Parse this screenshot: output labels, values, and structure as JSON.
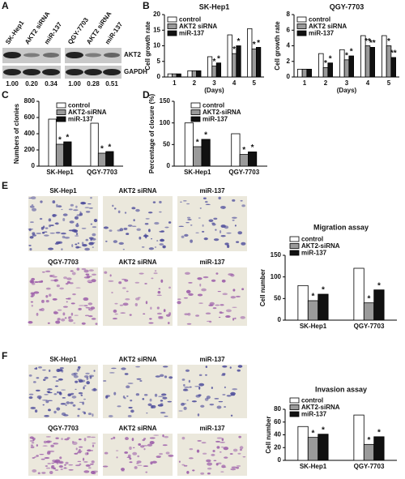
{
  "panel_labels": [
    "A",
    "B",
    "C",
    "D",
    "E",
    "F"
  ],
  "blot": {
    "lanes": [
      "SK-Hep1",
      "AKT2 siRNA",
      "miR-137",
      "QGY-7703",
      "AKT2 siRNA",
      "miR-137"
    ],
    "rows": [
      "AKT2",
      "GAPDH"
    ],
    "ratios": [
      "1.00",
      "0.20",
      "0.34",
      "1.00",
      "0.28",
      "0.51"
    ]
  },
  "micrographs": {
    "migration": [
      "SK-Hep1",
      "AKT2 siRNA",
      "miR-137",
      "QGY-7703",
      "AKT2 siRNA",
      "miR-137"
    ],
    "invasion": [
      "SK-Hep1",
      "AKT2 siRNA",
      "miR-137",
      "QGY-7703",
      "AKT2 siRNA",
      "miR-137"
    ]
  },
  "chart_data": [
    {
      "type": "bar",
      "title": "SK-Hep1",
      "y_label": "Cell growth rate",
      "x_label": "(Days)",
      "categories": [
        "1",
        "2",
        "3",
        "4",
        "5"
      ],
      "series": [
        {
          "name": "control",
          "color": "#ffffff",
          "values": [
            1,
            2,
            6.5,
            13.5,
            15.5
          ],
          "significance": [
            null,
            null,
            null,
            null,
            null
          ]
        },
        {
          "name": "AKT2 siRNA",
          "color": "#9a9a9a",
          "values": [
            1,
            2,
            3.5,
            7.5,
            9
          ],
          "significance": [
            null,
            null,
            "*",
            "*",
            "*"
          ]
        },
        {
          "name": "miR-137",
          "color": "#111111",
          "values": [
            1,
            2,
            4.5,
            10,
            9.5
          ],
          "significance": [
            null,
            null,
            "*",
            "*",
            "*"
          ]
        }
      ],
      "ylim": [
        0,
        20
      ],
      "yticks": [
        0,
        5,
        10,
        15,
        20
      ],
      "legend": "upper left"
    },
    {
      "type": "bar",
      "title": "QGY-7703",
      "y_label": "Cell growth rate",
      "x_label": "(Days)",
      "categories": [
        "1",
        "2",
        "3",
        "4",
        "5"
      ],
      "series": [
        {
          "name": "control",
          "color": "#ffffff",
          "values": [
            1,
            3,
            3.5,
            5.3,
            5.3
          ],
          "significance": [
            null,
            null,
            null,
            null,
            null
          ]
        },
        {
          "name": "AKT2 siRNA",
          "color": "#9a9a9a",
          "values": [
            1,
            1.2,
            2.2,
            4,
            4
          ],
          "significance": [
            null,
            "*",
            "*",
            "**",
            "*"
          ]
        },
        {
          "name": "miR-137",
          "color": "#111111",
          "values": [
            1,
            1.8,
            2.7,
            3.8,
            2.5
          ],
          "significance": [
            null,
            "*",
            "*",
            "**",
            "**"
          ]
        }
      ],
      "ylim": [
        0,
        8
      ],
      "yticks": [
        0,
        2,
        4,
        6,
        8
      ],
      "legend": "upper left"
    },
    {
      "type": "bar",
      "y_label": "Numbers of clonies",
      "categories": [
        "SK-Hep1",
        "QGY-7703"
      ],
      "series": [
        {
          "name": "control",
          "color": "#ffffff",
          "values": [
            580,
            530
          ],
          "significance": [
            null,
            null
          ]
        },
        {
          "name": "AKT2-siRNA",
          "color": "#9a9a9a",
          "values": [
            270,
            160
          ],
          "significance": [
            "*",
            "*"
          ]
        },
        {
          "name": "miR-137",
          "color": "#111111",
          "values": [
            300,
            180
          ],
          "significance": [
            "*",
            "*"
          ]
        }
      ],
      "ylim": [
        0,
        800
      ],
      "yticks": [
        0,
        200,
        400,
        600,
        800
      ],
      "legend": "upper right"
    },
    {
      "type": "bar",
      "y_label": "Percentage of closure (%)",
      "categories": [
        "SK-Hep1",
        "QGY-7703"
      ],
      "series": [
        {
          "name": "control",
          "color": "#ffffff",
          "values": [
            100,
            75
          ],
          "significance": [
            null,
            null
          ]
        },
        {
          "name": "AKT2-siRNA",
          "color": "#9a9a9a",
          "values": [
            45,
            27
          ],
          "significance": [
            "*",
            "*"
          ]
        },
        {
          "name": "miR-137",
          "color": "#111111",
          "values": [
            62,
            33
          ],
          "significance": [
            "*",
            "*"
          ]
        }
      ],
      "ylim": [
        0,
        150
      ],
      "yticks": [
        0,
        50,
        100,
        150
      ],
      "legend": "upper right"
    },
    {
      "type": "bar",
      "title": "Migration assay",
      "y_label": "Cell number",
      "categories": [
        "SK-Hep1",
        "QGY-7703"
      ],
      "series": [
        {
          "name": "control",
          "color": "#ffffff",
          "values": [
            80,
            120
          ],
          "significance": [
            null,
            null
          ]
        },
        {
          "name": "AKT2-siRNA",
          "color": "#9a9a9a",
          "values": [
            45,
            40
          ],
          "significance": [
            "*",
            "*"
          ]
        },
        {
          "name": "miR-137",
          "color": "#111111",
          "values": [
            60,
            70
          ],
          "significance": [
            "*",
            "*"
          ]
        }
      ],
      "ylim": [
        0,
        150
      ],
      "yticks": [
        0,
        50,
        100,
        150
      ],
      "legend": "upper left"
    },
    {
      "type": "bar",
      "title": "Invasion assay",
      "y_label": "Cell number",
      "categories": [
        "SK-Hep1",
        "QGY-7703"
      ],
      "series": [
        {
          "name": "control",
          "color": "#ffffff",
          "values": [
            53,
            71
          ],
          "significance": [
            null,
            null
          ]
        },
        {
          "name": "AKT2-siRNA",
          "color": "#9a9a9a",
          "values": [
            36,
            25
          ],
          "significance": [
            "*",
            "*"
          ]
        },
        {
          "name": "miR-137",
          "color": "#111111",
          "values": [
            41,
            37
          ],
          "significance": [
            "*",
            "*"
          ]
        }
      ],
      "ylim": [
        0,
        80
      ],
      "yticks": [
        0,
        20,
        40,
        60,
        80
      ],
      "legend": "upper left"
    }
  ]
}
